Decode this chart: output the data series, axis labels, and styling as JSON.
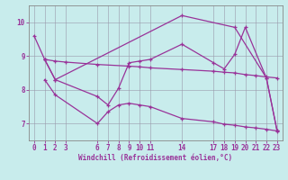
{
  "xlabel": "Windchill (Refroidissement éolien,°C)",
  "bg_color": "#c8ecec",
  "line_color": "#993399",
  "grid_color": "#9999aa",
  "xlim": [
    -0.5,
    23.5
  ],
  "ylim": [
    6.5,
    10.5
  ],
  "yticks": [
    7,
    8,
    9,
    10
  ],
  "xticks": [
    0,
    1,
    2,
    3,
    6,
    7,
    8,
    9,
    10,
    11,
    14,
    17,
    18,
    19,
    20,
    21,
    22,
    23
  ],
  "lines": [
    {
      "x": [
        0,
        1,
        2,
        14,
        19,
        22,
        23
      ],
      "y": [
        9.6,
        8.9,
        8.3,
        10.2,
        9.85,
        8.35,
        6.8
      ]
    },
    {
      "x": [
        1,
        2,
        3,
        6,
        9,
        10,
        11,
        14,
        17,
        18,
        19,
        20,
        21,
        22,
        23
      ],
      "y": [
        8.9,
        8.85,
        8.82,
        8.75,
        8.7,
        8.68,
        8.65,
        8.6,
        8.55,
        8.52,
        8.5,
        8.45,
        8.42,
        8.38,
        8.35
      ]
    },
    {
      "x": [
        1,
        2,
        6,
        7,
        8,
        9,
        10,
        11,
        14,
        17,
        18,
        19,
        20,
        22,
        23
      ],
      "y": [
        8.9,
        8.3,
        7.8,
        7.55,
        8.05,
        8.8,
        8.85,
        8.9,
        9.35,
        8.8,
        8.62,
        9.05,
        9.85,
        8.35,
        6.8
      ]
    },
    {
      "x": [
        1,
        2,
        6,
        7,
        8,
        9,
        10,
        11,
        14,
        17,
        18,
        19,
        20,
        21,
        22,
        23
      ],
      "y": [
        8.3,
        7.85,
        7.0,
        7.35,
        7.55,
        7.6,
        7.55,
        7.5,
        7.15,
        7.05,
        6.98,
        6.95,
        6.9,
        6.87,
        6.83,
        6.78
      ]
    }
  ]
}
